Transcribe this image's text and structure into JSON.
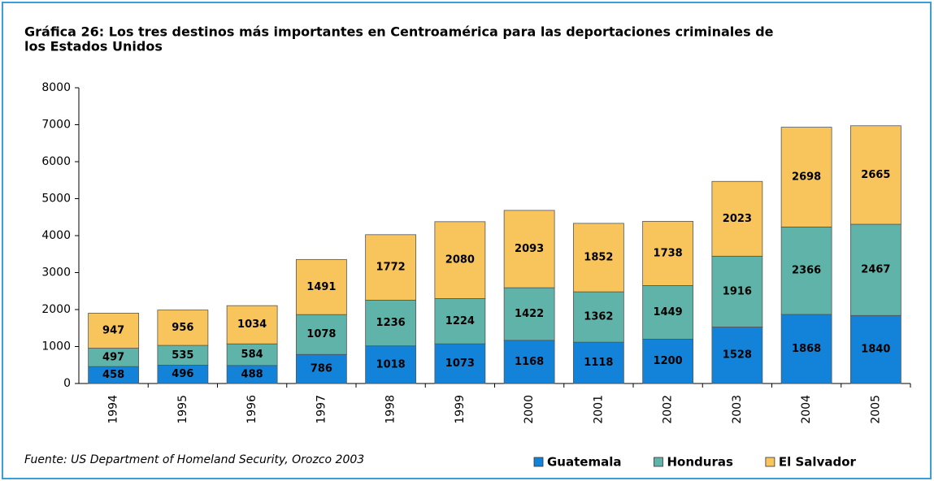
{
  "chart_data": {
    "type": "stacked_bar",
    "title": [
      "Gráfica 26: Los tres destinos más importantes en Centroamérica para las deportaciones criminales de",
      "los Estados Unidos"
    ],
    "source": "Fuente: US Department of Homeland Security, Orozco 2003",
    "categories": [
      "1994",
      "1995",
      "1996",
      "1997",
      "1998",
      "1999",
      "2000",
      "2001",
      "2002",
      "2003",
      "2004",
      "2005"
    ],
    "series": [
      {
        "name": "Guatemala",
        "color": "#1283d8",
        "values": [
          458,
          496,
          488,
          786,
          1018,
          1073,
          1168,
          1118,
          1200,
          1528,
          1868,
          1840
        ]
      },
      {
        "name": "Honduras",
        "color": "#5fb3a8",
        "values": [
          497,
          535,
          584,
          1078,
          1236,
          1224,
          1422,
          1362,
          1449,
          1916,
          2366,
          2467
        ]
      },
      {
        "name": "El Salvador",
        "color": "#f8c55c",
        "values": [
          947,
          956,
          1034,
          1491,
          1772,
          2080,
          2093,
          1852,
          1738,
          2023,
          2698,
          2665
        ]
      }
    ],
    "ylim": [
      0,
      8000
    ],
    "yticks": [
      0,
      1000,
      2000,
      3000,
      4000,
      5000,
      6000,
      7000,
      8000
    ],
    "grid": false,
    "legend": "bottom-right"
  }
}
